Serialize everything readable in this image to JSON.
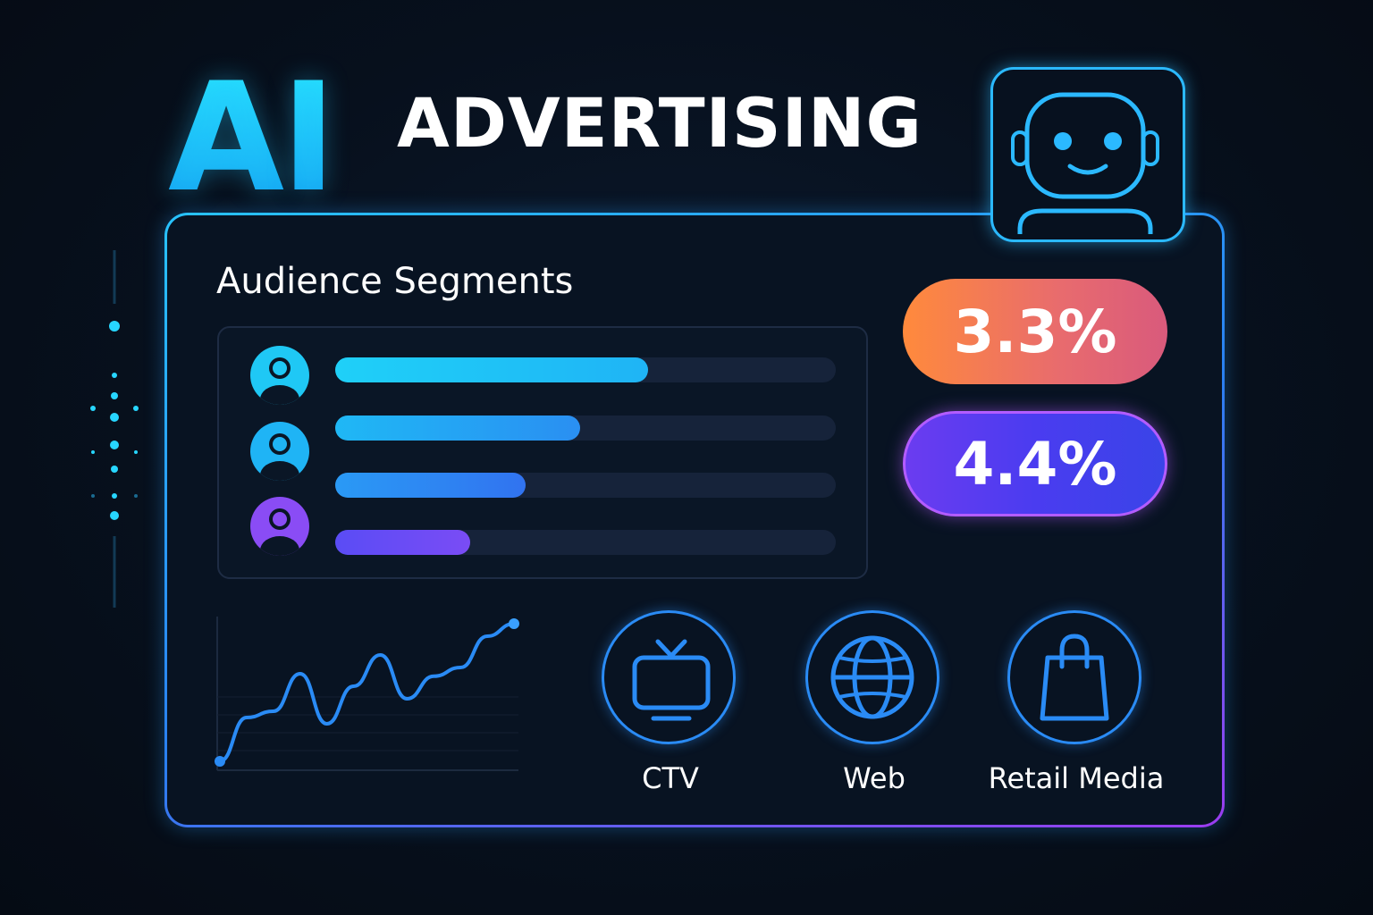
{
  "header": {
    "title_ai": "AI",
    "title_main": "ADVERTISING"
  },
  "robot": {
    "icon": "robot-icon"
  },
  "segments": {
    "title": "Audience Segments",
    "rows": [
      {
        "icon": "user-avatar-icon",
        "color": "#1fc8f5",
        "fill": 0.625
      },
      {
        "icon": "user-avatar-icon",
        "color": "#1fb4f5",
        "fill": 0.49
      },
      {
        "icon": "",
        "color": "#2f7ff0",
        "fill": 0.38
      },
      {
        "icon": "user-avatar-icon",
        "color": "#8a4cf5",
        "fill": 0.27
      }
    ]
  },
  "stats": [
    {
      "value": "3.3%"
    },
    {
      "value": "4.4%"
    }
  ],
  "chart_data": {
    "type": "line",
    "x": [
      0,
      1,
      2,
      3,
      4,
      5,
      6,
      7,
      8,
      9,
      10,
      11
    ],
    "values": [
      0,
      35,
      40,
      70,
      30,
      60,
      85,
      50,
      68,
      75,
      100,
      110
    ],
    "title": "",
    "xlabel": "",
    "ylabel": ""
  },
  "channels": [
    {
      "label": "CTV",
      "icon": "tv-icon"
    },
    {
      "label": "Web",
      "icon": "globe-icon"
    },
    {
      "label": "Retail Media",
      "icon": "shopping-bag-icon"
    }
  ],
  "colors": {
    "accent_cyan": "#27e4ff",
    "accent_blue": "#2a8bf5",
    "accent_purple": "#9b3cf0",
    "stat_orange": "#ff8a3c",
    "stat_violet": "#4a3cf0"
  }
}
